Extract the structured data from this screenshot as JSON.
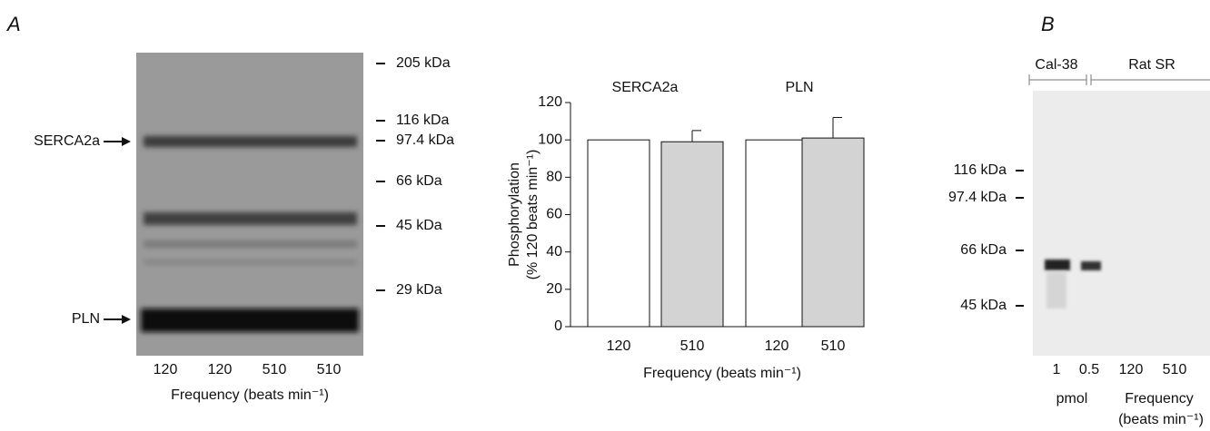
{
  "panel_a": {
    "label": "A",
    "bands": [
      "SERCA2a",
      "PLN"
    ],
    "markers": [
      "205 kDa",
      "116 kDa",
      "97.4 kDa",
      "66 kDa",
      "45 kDa",
      "29 kDa"
    ],
    "lanes": [
      "120",
      "120",
      "510",
      "510"
    ],
    "xlabel": "Frequency (beats min⁻¹)"
  },
  "chart_data": {
    "type": "bar",
    "groups": [
      "SERCA2a",
      "PLN"
    ],
    "categories": [
      "120",
      "510",
      "120",
      "510"
    ],
    "values": [
      100,
      99,
      100,
      101
    ],
    "errors": [
      null,
      6,
      null,
      11
    ],
    "colors": [
      "#ffffff",
      "#d3d3d3",
      "#ffffff",
      "#d3d3d3"
    ],
    "ylabel": [
      "Phosphorylation",
      "(% 120 beats min⁻¹)"
    ],
    "xlabel": "Frequency (beats min⁻¹)",
    "ylim": [
      0,
      120
    ],
    "yticks": [
      0,
      20,
      40,
      60,
      80,
      100,
      120
    ]
  },
  "panel_b": {
    "label": "B",
    "groups": [
      "Cal-38",
      "Rat SR"
    ],
    "markers": [
      "116 kDa",
      "97.4 kDa",
      "66 kDa",
      "45 kDa"
    ],
    "lanes": [
      "1",
      "0.5",
      "120",
      "510"
    ],
    "units": [
      "pmol",
      "Frequency",
      "(beats min⁻¹)"
    ]
  }
}
